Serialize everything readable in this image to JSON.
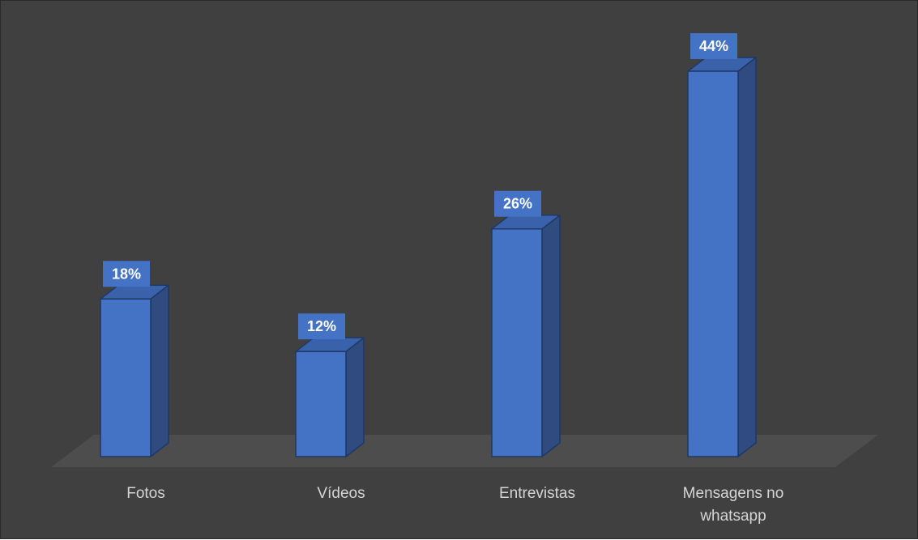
{
  "chart_data": {
    "type": "bar",
    "style": "3d-column",
    "categories": [
      "Fotos",
      "Vídeos",
      "Entrevistas",
      "Mensagens no whatsapp"
    ],
    "values": [
      18,
      12,
      26,
      44
    ],
    "data_labels": [
      "18%",
      "12%",
      "26%",
      "44%"
    ],
    "ylim": [
      0,
      44
    ],
    "grid": false,
    "legend": "none",
    "colors": {
      "background": "#404040",
      "floor": "#4d4d4d",
      "bar_front": "#4472c4",
      "bar_side": "#2f4b80",
      "bar_top": "#3a62ab",
      "bar_outline": "#1f3864",
      "label_box": "#4472c4",
      "label_text": "#ffffff",
      "axis_text": "#d4d4d4"
    }
  }
}
